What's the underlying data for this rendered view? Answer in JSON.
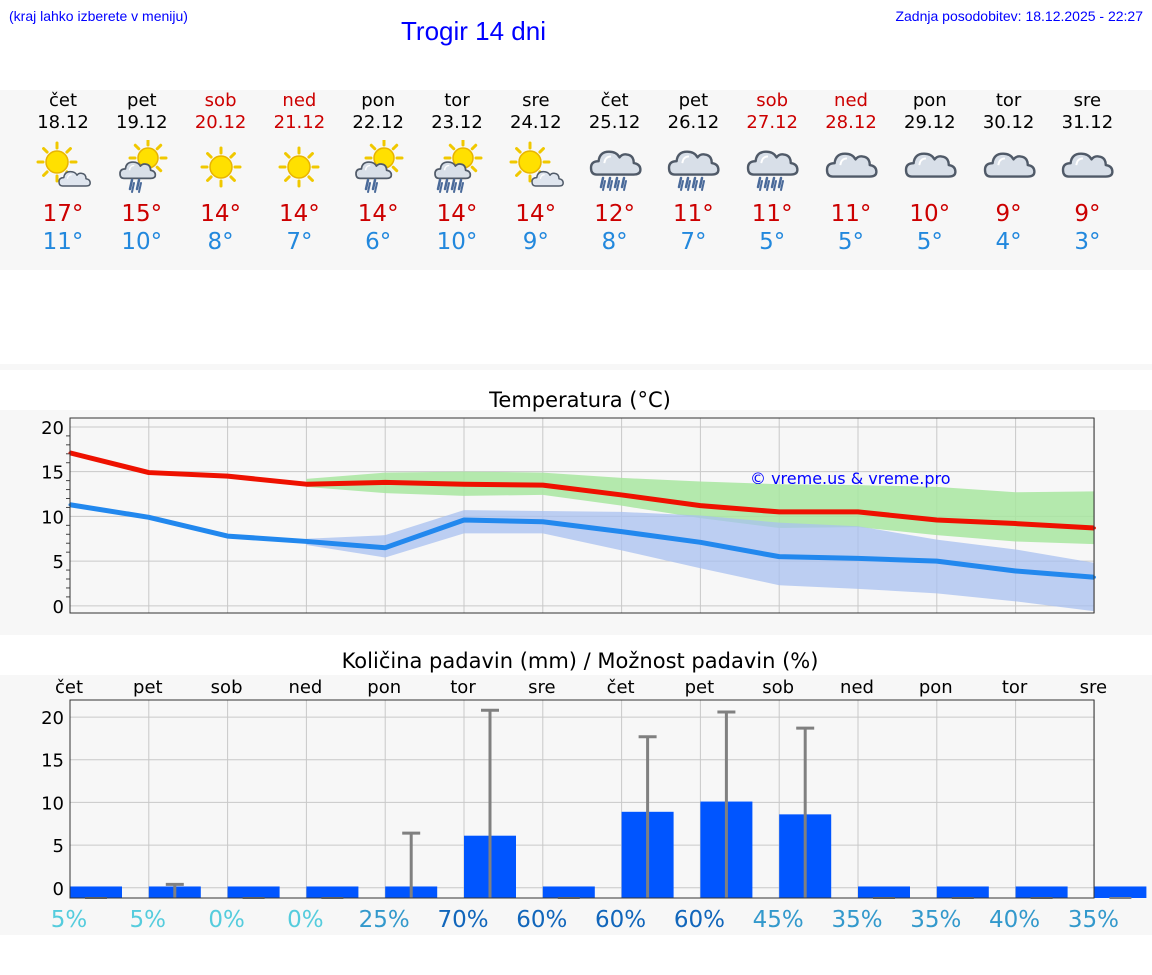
{
  "header": {
    "hint": "(kraj lahko izberete v meniju)",
    "title": "Trogir 14 dni",
    "updated": "Zadnja posodobitev: 18.12.2025 - 22:27"
  },
  "days": [
    {
      "name": "čet",
      "date": "18.12",
      "weekend": false,
      "icon": "sun-small-cloud-icon",
      "max": "17°",
      "min": "11°"
    },
    {
      "name": "pet",
      "date": "19.12",
      "weekend": false,
      "icon": "sun-cloud-rain-icon",
      "max": "15°",
      "min": "10°"
    },
    {
      "name": "sob",
      "date": "20.12",
      "weekend": true,
      "icon": "sun-icon",
      "max": "14°",
      "min": "8°"
    },
    {
      "name": "ned",
      "date": "21.12",
      "weekend": true,
      "icon": "sun-icon",
      "max": "14°",
      "min": "7°"
    },
    {
      "name": "pon",
      "date": "22.12",
      "weekend": false,
      "icon": "sun-cloud-rain-icon",
      "max": "14°",
      "min": "6°"
    },
    {
      "name": "tor",
      "date": "23.12",
      "weekend": false,
      "icon": "sun-cloud-heavy-rain-icon",
      "max": "14°",
      "min": "10°"
    },
    {
      "name": "sre",
      "date": "24.12",
      "weekend": false,
      "icon": "sun-small-cloud-icon",
      "max": "14°",
      "min": "9°"
    },
    {
      "name": "čet",
      "date": "25.12",
      "weekend": false,
      "icon": "cloud-heavy-rain-icon",
      "max": "12°",
      "min": "8°"
    },
    {
      "name": "pet",
      "date": "26.12",
      "weekend": false,
      "icon": "cloud-heavy-rain-icon",
      "max": "11°",
      "min": "7°"
    },
    {
      "name": "sob",
      "date": "27.12",
      "weekend": true,
      "icon": "cloud-heavy-rain-icon",
      "max": "11°",
      "min": "5°"
    },
    {
      "name": "ned",
      "date": "28.12",
      "weekend": true,
      "icon": "cloud-icon",
      "max": "11°",
      "min": "5°"
    },
    {
      "name": "pon",
      "date": "29.12",
      "weekend": false,
      "icon": "cloud-icon",
      "max": "10°",
      "min": "5°"
    },
    {
      "name": "tor",
      "date": "30.12",
      "weekend": false,
      "icon": "cloud-icon",
      "max": "9°",
      "min": "4°"
    },
    {
      "name": "sre",
      "date": "31.12",
      "weekend": false,
      "icon": "cloud-icon",
      "max": "9°",
      "min": "3°"
    }
  ],
  "colors": {
    "max": "#ee1100",
    "min": "#2288ee",
    "maxBand": "#a8e6a0",
    "minBand": "#a8c0f0",
    "overlap": "#6fbfa0",
    "bar": "#0055ff",
    "whisker": "#808080",
    "grid": "#c8c8c8"
  },
  "chart_data": [
    {
      "type": "line",
      "title": "Temperatura (°C)",
      "watermark": "© vreme.us & vreme.pro",
      "ylim": [
        -0.8,
        21
      ],
      "yticks": [
        "0",
        "5",
        "10",
        "15",
        "20"
      ],
      "x": [
        0,
        1,
        2,
        3,
        4,
        5,
        6,
        7,
        8,
        9,
        10,
        11,
        12,
        13
      ],
      "series": [
        {
          "name": "max",
          "values": [
            17.1,
            14.9,
            14.5,
            13.6,
            13.8,
            13.6,
            13.5,
            12.4,
            11.2,
            10.5,
            10.5,
            9.6,
            9.2,
            8.7
          ],
          "lower": [
            null,
            null,
            null,
            13.3,
            12.6,
            12.3,
            12.4,
            11.2,
            9.8,
            8.7,
            8.8,
            7.9,
            7.2,
            6.9
          ],
          "upper": [
            null,
            null,
            null,
            14.2,
            14.9,
            15.0,
            14.9,
            14.3,
            13.9,
            13.6,
            13.5,
            13.3,
            12.7,
            12.8
          ]
        },
        {
          "name": "min",
          "values": [
            11.3,
            9.9,
            7.8,
            7.2,
            6.5,
            9.6,
            9.4,
            8.3,
            7.1,
            5.5,
            5.3,
            5.0,
            3.9,
            3.2
          ],
          "lower": [
            null,
            null,
            null,
            6.8,
            5.4,
            8.1,
            8.1,
            6.2,
            4.2,
            2.3,
            1.9,
            1.4,
            0.5,
            -0.6
          ],
          "upper": [
            null,
            null,
            null,
            7.5,
            7.9,
            10.7,
            10.6,
            10.5,
            10.1,
            9.3,
            8.9,
            7.4,
            6.3,
            4.8
          ]
        }
      ]
    },
    {
      "type": "bar",
      "title": "Količina padavin (mm) / Možnost padavin (%)",
      "categories": [
        "čet",
        "pet",
        "sob",
        "ned",
        "pon",
        "tor",
        "sre",
        "čet",
        "pet",
        "sob",
        "ned",
        "pon",
        "tor",
        "sre"
      ],
      "ylim": [
        -1.2,
        22
      ],
      "yticks": [
        "0",
        "5",
        "10",
        "15",
        "20"
      ],
      "values": [
        0,
        0.1,
        0,
        0,
        0.1,
        6.1,
        0,
        8.9,
        10.1,
        8.6,
        0,
        0,
        0,
        0
      ],
      "errmax": [
        0,
        0.4,
        0,
        0,
        6.4,
        20.8,
        0,
        17.7,
        20.6,
        18.7,
        0,
        0,
        0,
        0
      ],
      "chance": [
        "5%",
        "5%",
        "0%",
        "0%",
        "25%",
        "70%",
        "60%",
        "60%",
        "60%",
        "45%",
        "35%",
        "35%",
        "40%",
        "35%"
      ],
      "chance_colors": [
        "#55ccdd",
        "#55ccdd",
        "#55ccdd",
        "#55ccdd",
        "#3399cc",
        "#1166bb",
        "#1166bb",
        "#1166bb",
        "#1166bb",
        "#3399cc",
        "#3399cc",
        "#3399cc",
        "#3399cc",
        "#3399cc"
      ]
    }
  ]
}
